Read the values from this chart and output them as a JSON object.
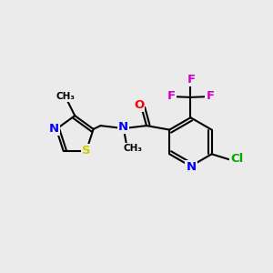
{
  "bg_color": "#ebebeb",
  "atom_colors": {
    "C": "#000000",
    "N": "#0000ff",
    "O": "#ff0000",
    "S": "#cccc00",
    "F": "#cc00cc",
    "Cl": "#00aa00"
  },
  "bond_lw": 1.5
}
